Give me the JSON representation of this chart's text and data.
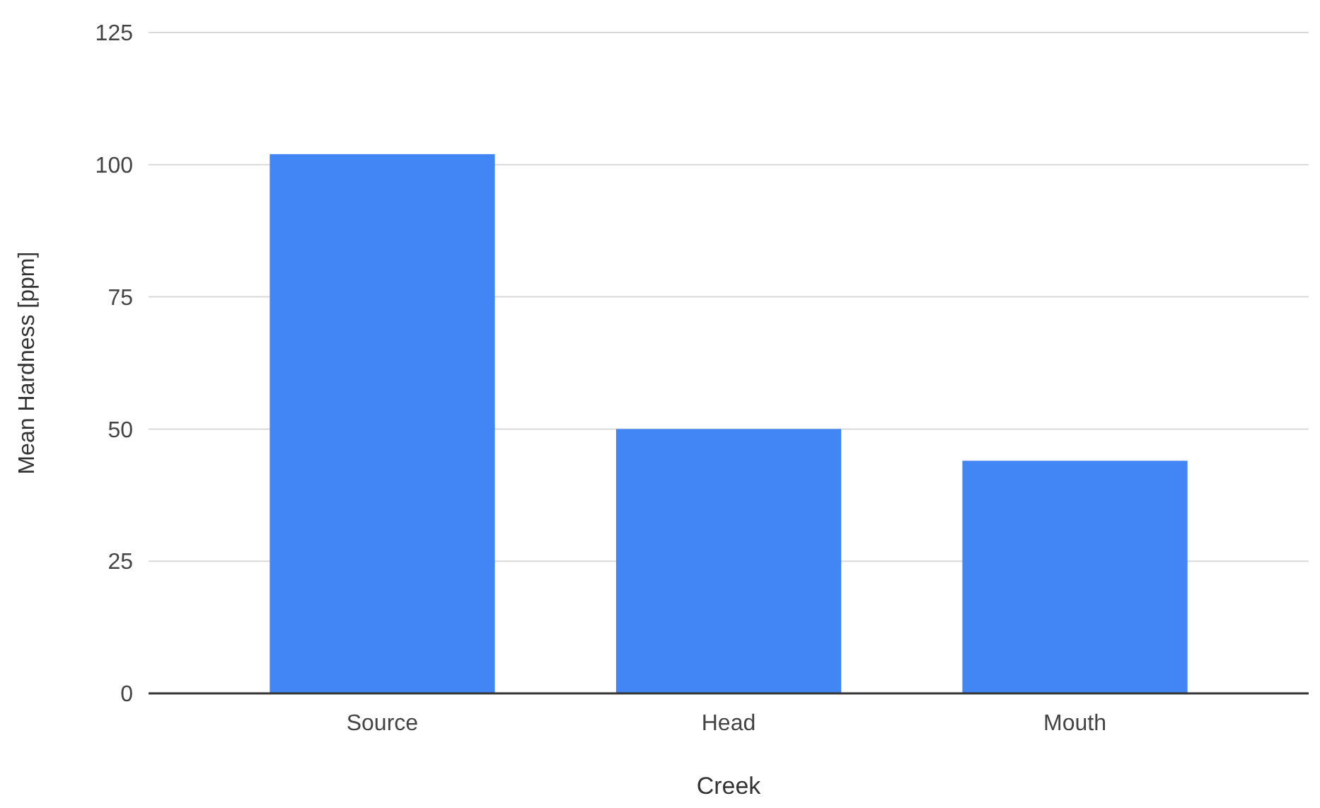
{
  "chart_data": {
    "type": "bar",
    "xlabel": "Creek",
    "ylabel": "Mean Hardness [ppm]",
    "categories": [
      "Source",
      "Head",
      "Mouth"
    ],
    "values": [
      102,
      50,
      44
    ],
    "color": "#4285f4",
    "ylim": [
      0,
      125
    ],
    "yticks": [
      0,
      25,
      50,
      75,
      100,
      125
    ],
    "grid": "y"
  }
}
